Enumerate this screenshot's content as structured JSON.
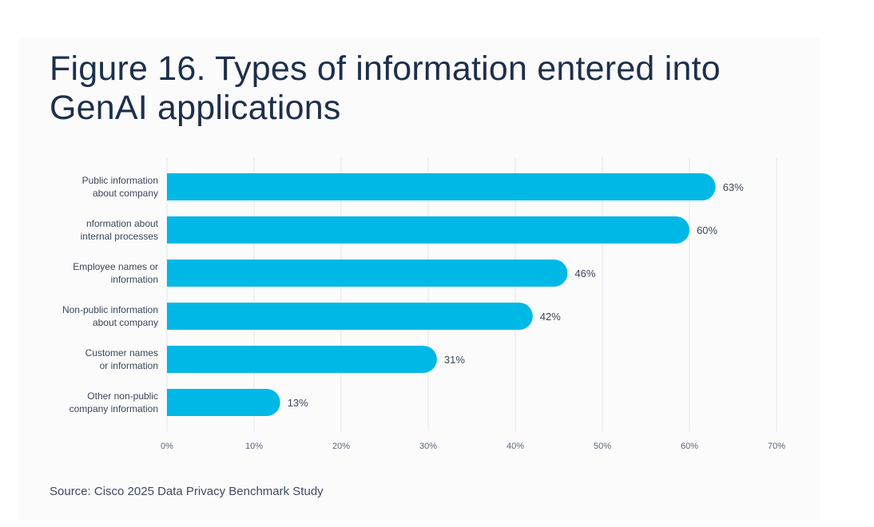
{
  "figure": {
    "title": "Figure 16. Types of information entered into GenAI applications",
    "source": "Source: Cisco 2025 Data Privacy Benchmark Study"
  },
  "chart_data": {
    "type": "bar",
    "orientation": "horizontal",
    "title": "Figure 16. Types of information entered into GenAI applications",
    "categories": [
      [
        "Public information",
        "about company"
      ],
      [
        "nformation about",
        "internal processes"
      ],
      [
        "Employee names or",
        "information"
      ],
      [
        "Non-public information",
        "about company"
      ],
      [
        "Customer names",
        "or information"
      ],
      [
        "Other non-public",
        "company information"
      ]
    ],
    "values": [
      63,
      60,
      46,
      42,
      31,
      13
    ],
    "value_labels": [
      "63%",
      "60%",
      "46%",
      "42%",
      "31%",
      "13%"
    ],
    "xlim": [
      0,
      70
    ],
    "xticks": [
      0,
      10,
      20,
      30,
      40,
      50,
      60,
      70
    ],
    "xtick_labels": [
      "0%",
      "10%",
      "20%",
      "30%",
      "40%",
      "50%",
      "60%",
      "70%"
    ],
    "xlabel": "",
    "ylabel": "",
    "grid": "vertical",
    "legend": "none",
    "bar_color": "#00b8e6",
    "grid_color": "#e3e6ea"
  }
}
